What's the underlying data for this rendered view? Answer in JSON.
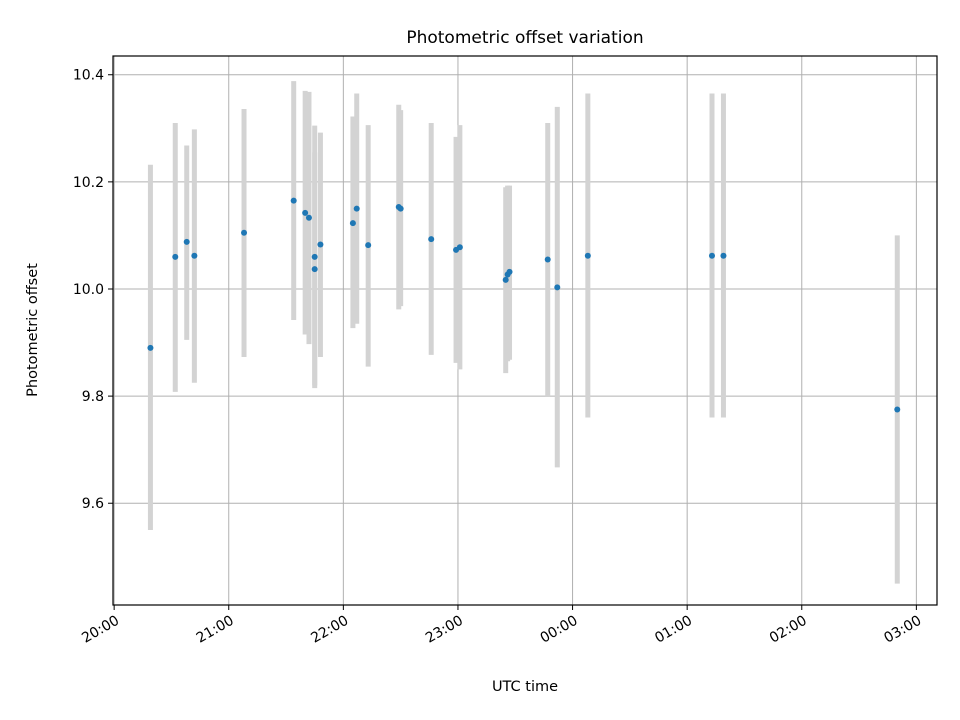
{
  "chart_data": {
    "type": "scatter",
    "title": "Photometric offset variation",
    "xlabel": "UTC time",
    "ylabel": "Photometric offset",
    "x_tick_labels": [
      "20:00",
      "21:00",
      "22:00",
      "23:00",
      "00:00",
      "01:00",
      "02:00",
      "03:00"
    ],
    "x_tick_hours": [
      0,
      1,
      2,
      3,
      4,
      5,
      6,
      7
    ],
    "x_origin_time": "20:00",
    "xlim_hours": [
      -0.01,
      7.18
    ],
    "y_ticks": [
      9.6,
      9.8,
      10.0,
      10.2,
      10.4
    ],
    "y_tick_labels": [
      "9.6",
      "9.8",
      "10.0",
      "10.2",
      "10.4"
    ],
    "ylim": [
      9.41,
      10.435
    ],
    "grid": true,
    "colors": {
      "point": "#1f77b4",
      "errorbar": "#d3d3d3",
      "grid": "#b0b0b0"
    },
    "points": [
      {
        "t": "20:19",
        "y": 9.89,
        "lo": 9.55,
        "hi": 10.232
      },
      {
        "t": "20:32",
        "y": 10.06,
        "lo": 9.808,
        "hi": 10.31
      },
      {
        "t": "20:38",
        "y": 10.088,
        "lo": 9.905,
        "hi": 10.268
      },
      {
        "t": "20:42",
        "y": 10.062,
        "lo": 9.825,
        "hi": 10.298
      },
      {
        "t": "21:08",
        "y": 10.105,
        "lo": 9.873,
        "hi": 10.336
      },
      {
        "t": "21:34",
        "y": 10.165,
        "lo": 9.942,
        "hi": 10.388
      },
      {
        "t": "21:40",
        "y": 10.142,
        "lo": 9.915,
        "hi": 10.37
      },
      {
        "t": "21:42",
        "y": 10.133,
        "lo": 9.897,
        "hi": 10.368
      },
      {
        "t": "21:45",
        "y": 10.06,
        "lo": 9.82,
        "hi": 10.305
      },
      {
        "t": "21:45",
        "y": 10.037,
        "lo": 9.815,
        "hi": 10.255
      },
      {
        "t": "21:48",
        "y": 10.083,
        "lo": 9.873,
        "hi": 10.292
      },
      {
        "t": "22:05",
        "y": 10.123,
        "lo": 9.927,
        "hi": 10.322
      },
      {
        "t": "22:07",
        "y": 10.15,
        "lo": 9.935,
        "hi": 10.365
      },
      {
        "t": "22:13",
        "y": 10.082,
        "lo": 9.855,
        "hi": 10.306
      },
      {
        "t": "22:29",
        "y": 10.153,
        "lo": 9.962,
        "hi": 10.344
      },
      {
        "t": "22:30",
        "y": 10.15,
        "lo": 9.968,
        "hi": 10.334
      },
      {
        "t": "22:46",
        "y": 10.093,
        "lo": 9.877,
        "hi": 10.31
      },
      {
        "t": "22:59",
        "y": 10.073,
        "lo": 9.862,
        "hi": 10.284
      },
      {
        "t": "23:01",
        "y": 10.078,
        "lo": 9.85,
        "hi": 10.306
      },
      {
        "t": "23:25",
        "y": 10.017,
        "lo": 9.843,
        "hi": 10.19
      },
      {
        "t": "23:26",
        "y": 10.027,
        "lo": 9.865,
        "hi": 10.193
      },
      {
        "t": "23:27",
        "y": 10.032,
        "lo": 9.868,
        "hi": 10.193
      },
      {
        "t": "23:47",
        "y": 10.055,
        "lo": 9.8,
        "hi": 10.31
      },
      {
        "t": "23:52",
        "y": 10.003,
        "lo": 9.667,
        "hi": 10.34
      },
      {
        "t": "00:08",
        "y": 10.062,
        "lo": 9.76,
        "hi": 10.365
      },
      {
        "t": "01:13",
        "y": 10.062,
        "lo": 9.76,
        "hi": 10.365
      },
      {
        "t": "01:19",
        "y": 10.062,
        "lo": 9.76,
        "hi": 10.365
      },
      {
        "t": "02:50",
        "y": 9.775,
        "lo": 9.45,
        "hi": 10.1
      }
    ]
  }
}
